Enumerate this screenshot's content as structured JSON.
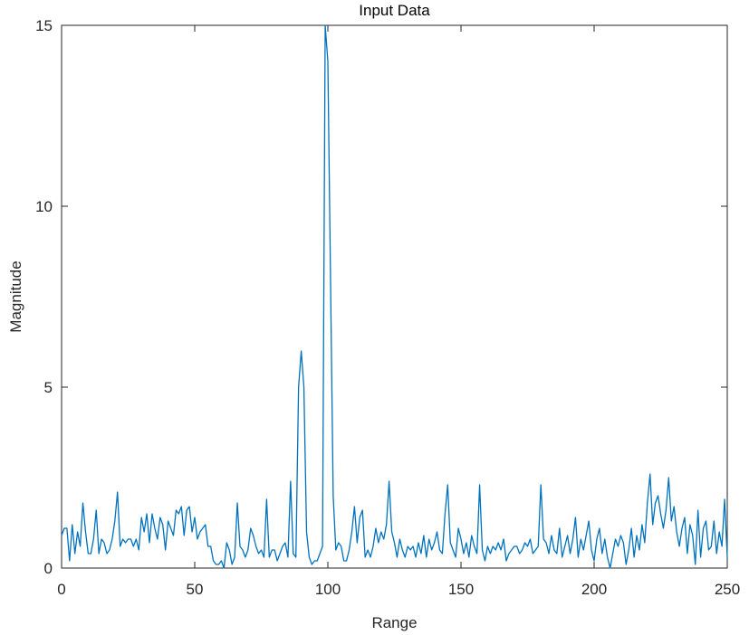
{
  "chart_data": {
    "type": "line",
    "title": "Input Data",
    "xlabel": "Range",
    "ylabel": "Magnitude",
    "xlim": [
      0,
      250
    ],
    "ylim": [
      0,
      15
    ],
    "xticks": [
      "0",
      "50",
      "100",
      "150",
      "200",
      "250"
    ],
    "yticks": [
      "0",
      "5",
      "10",
      "15"
    ],
    "grid": false,
    "line_color": "#0072BD",
    "series": [
      {
        "x": [
          0,
          1,
          2,
          3,
          4,
          5,
          6,
          7,
          8,
          9,
          10,
          11,
          12,
          13,
          14,
          15,
          16,
          17,
          18,
          19,
          20,
          21,
          22,
          23,
          24,
          25,
          26,
          27,
          28,
          29,
          30,
          31,
          32,
          33,
          34,
          35,
          36,
          37,
          38,
          39,
          40,
          41,
          42,
          43,
          44,
          45,
          46,
          47,
          48,
          49,
          50,
          51,
          52,
          53,
          54,
          55,
          56,
          57,
          58,
          59,
          60,
          61,
          62,
          63,
          64,
          65,
          66,
          67,
          68,
          69,
          70,
          71,
          72,
          73,
          74,
          75,
          76,
          77,
          78,
          79,
          80,
          81,
          82,
          83,
          84,
          85,
          86,
          87,
          88,
          89,
          90,
          91,
          92,
          93,
          94,
          95,
          96,
          97,
          98,
          99,
          100,
          101,
          102,
          103,
          104,
          105,
          106,
          107,
          108,
          109,
          110,
          111,
          112,
          113,
          114,
          115,
          116,
          117,
          118,
          119,
          120,
          121,
          122,
          123,
          124,
          125,
          126,
          127,
          128,
          129,
          130,
          131,
          132,
          133,
          134,
          135,
          136,
          137,
          138,
          139,
          140,
          141,
          142,
          143,
          144,
          145,
          146,
          147,
          148,
          149,
          150,
          151,
          152,
          153,
          154,
          155,
          156,
          157,
          158,
          159,
          160,
          161,
          162,
          163,
          164,
          165,
          166,
          167,
          168,
          169,
          170,
          171,
          172,
          173,
          174,
          175,
          176,
          177,
          178,
          179,
          180,
          181,
          182,
          183,
          184,
          185,
          186,
          187,
          188,
          189,
          190,
          191,
          192,
          193,
          194,
          195,
          196,
          197,
          198,
          199,
          200,
          201,
          202,
          203,
          204,
          205,
          206,
          207,
          208,
          209,
          210,
          211,
          212,
          213,
          214,
          215,
          216,
          217,
          218,
          219,
          220,
          221,
          222,
          223,
          224,
          225,
          226,
          227,
          228,
          229,
          230,
          231,
          232,
          233,
          234,
          235,
          236,
          237,
          238,
          239,
          240,
          241,
          242,
          243,
          244,
          245,
          246,
          247,
          248,
          249,
          250
        ],
        "y": [
          0.9,
          1.1,
          1.1,
          0.2,
          1.2,
          0.4,
          1.0,
          0.6,
          1.8,
          1.0,
          0.4,
          0.4,
          0.8,
          1.6,
          0.4,
          0.8,
          0.7,
          0.4,
          0.5,
          0.8,
          1.3,
          2.1,
          0.6,
          0.8,
          0.7,
          0.8,
          0.8,
          0.6,
          0.8,
          0.5,
          1.4,
          1.0,
          1.5,
          0.7,
          1.5,
          1.1,
          0.8,
          1.4,
          1.2,
          0.5,
          1.3,
          1.1,
          0.9,
          1.6,
          1.5,
          1.7,
          0.9,
          1.6,
          1.7,
          1.0,
          1.4,
          0.8,
          1.0,
          1.1,
          1.2,
          0.6,
          0.6,
          0.2,
          0.1,
          0.1,
          0.2,
          0.0,
          0.7,
          0.5,
          0.1,
          0.3,
          1.8,
          0.6,
          0.5,
          0.3,
          0.5,
          1.1,
          0.9,
          0.6,
          0.4,
          0.5,
          0.3,
          1.9,
          0.3,
          0.5,
          0.5,
          0.2,
          0.4,
          0.6,
          0.7,
          0.3,
          2.4,
          0.4,
          0.3,
          5.0,
          6.0,
          5.0,
          1.0,
          0.3,
          0.1,
          0.2,
          0.2,
          0.4,
          0.6,
          15.0,
          14.0,
          8.0,
          2.0,
          0.5,
          0.7,
          0.6,
          0.2,
          0.2,
          0.5,
          1.0,
          1.7,
          0.7,
          1.4,
          1.6,
          0.3,
          0.5,
          0.3,
          0.6,
          1.1,
          0.7,
          1.0,
          0.8,
          1.2,
          2.4,
          1.0,
          0.7,
          0.3,
          0.8,
          0.5,
          0.3,
          0.6,
          0.5,
          0.6,
          0.3,
          0.7,
          0.4,
          0.9,
          0.3,
          0.8,
          0.5,
          0.7,
          1.0,
          0.5,
          0.4,
          1.5,
          2.3,
          0.7,
          0.5,
          0.3,
          1.1,
          0.8,
          0.4,
          0.7,
          0.3,
          0.9,
          0.6,
          0.4,
          2.3,
          0.5,
          0.2,
          0.6,
          0.4,
          0.6,
          0.5,
          0.7,
          0.5,
          0.8,
          0.2,
          0.4,
          0.5,
          0.6,
          0.6,
          0.4,
          0.5,
          0.7,
          0.6,
          0.8,
          0.4,
          0.5,
          0.6,
          2.3,
          0.8,
          0.7,
          0.4,
          0.9,
          0.5,
          0.4,
          1.1,
          0.3,
          0.6,
          0.9,
          0.4,
          0.8,
          1.4,
          0.3,
          0.8,
          0.5,
          0.9,
          1.3,
          0.5,
          0.2,
          0.8,
          1.1,
          0.4,
          0.8,
          0.3,
          0.0,
          0.4,
          0.8,
          0.6,
          0.9,
          0.7,
          0.1,
          0.5,
          1.1,
          0.3,
          0.9,
          0.5,
          1.2,
          0.7,
          1.8,
          2.6,
          1.2,
          1.8,
          2.0,
          1.5,
          1.1,
          1.6,
          2.5,
          1.3,
          1.7,
          1.0,
          0.6,
          1.1,
          1.4,
          0.4,
          1.2,
          0.9,
          0.1,
          1.6,
          0.3,
          1.1,
          1.3,
          0.5,
          0.6,
          1.3,
          0.4,
          1.0,
          0.6,
          1.9,
          0.3
        ]
      }
    ]
  }
}
